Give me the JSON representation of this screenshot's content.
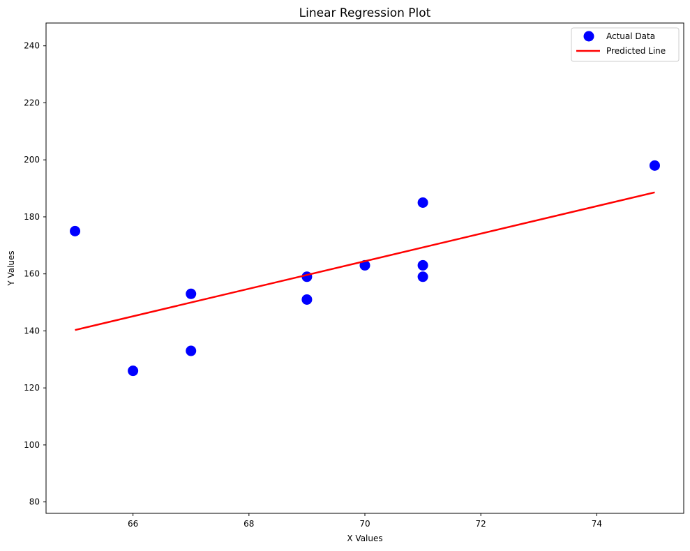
{
  "chart_data": {
    "type": "scatter",
    "title": "Linear Regression Plot",
    "xlabel": "X Values",
    "ylabel": "Y Values",
    "xlim": [
      64.5,
      75.5
    ],
    "ylim": [
      76,
      248
    ],
    "xticks": [
      66,
      68,
      70,
      72,
      74
    ],
    "yticks": [
      80,
      100,
      120,
      140,
      160,
      180,
      200,
      220,
      240
    ],
    "grid": false,
    "legend_position": "top-right",
    "series": [
      {
        "name": "Actual Data",
        "kind": "scatter",
        "color": "#0000ff",
        "points": [
          {
            "x": 65,
            "y": 175
          },
          {
            "x": 66,
            "y": 126
          },
          {
            "x": 67,
            "y": 153
          },
          {
            "x": 67,
            "y": 133
          },
          {
            "x": 69,
            "y": 159
          },
          {
            "x": 69,
            "y": 151
          },
          {
            "x": 70,
            "y": 163
          },
          {
            "x": 71,
            "y": 185
          },
          {
            "x": 71,
            "y": 163
          },
          {
            "x": 71,
            "y": 159
          },
          {
            "x": 75,
            "y": 198
          }
        ]
      },
      {
        "name": "Predicted Line",
        "kind": "line",
        "color": "#ff0000",
        "points": [
          {
            "x": 65,
            "y": 140.3
          },
          {
            "x": 75,
            "y": 188.6
          }
        ]
      }
    ]
  }
}
